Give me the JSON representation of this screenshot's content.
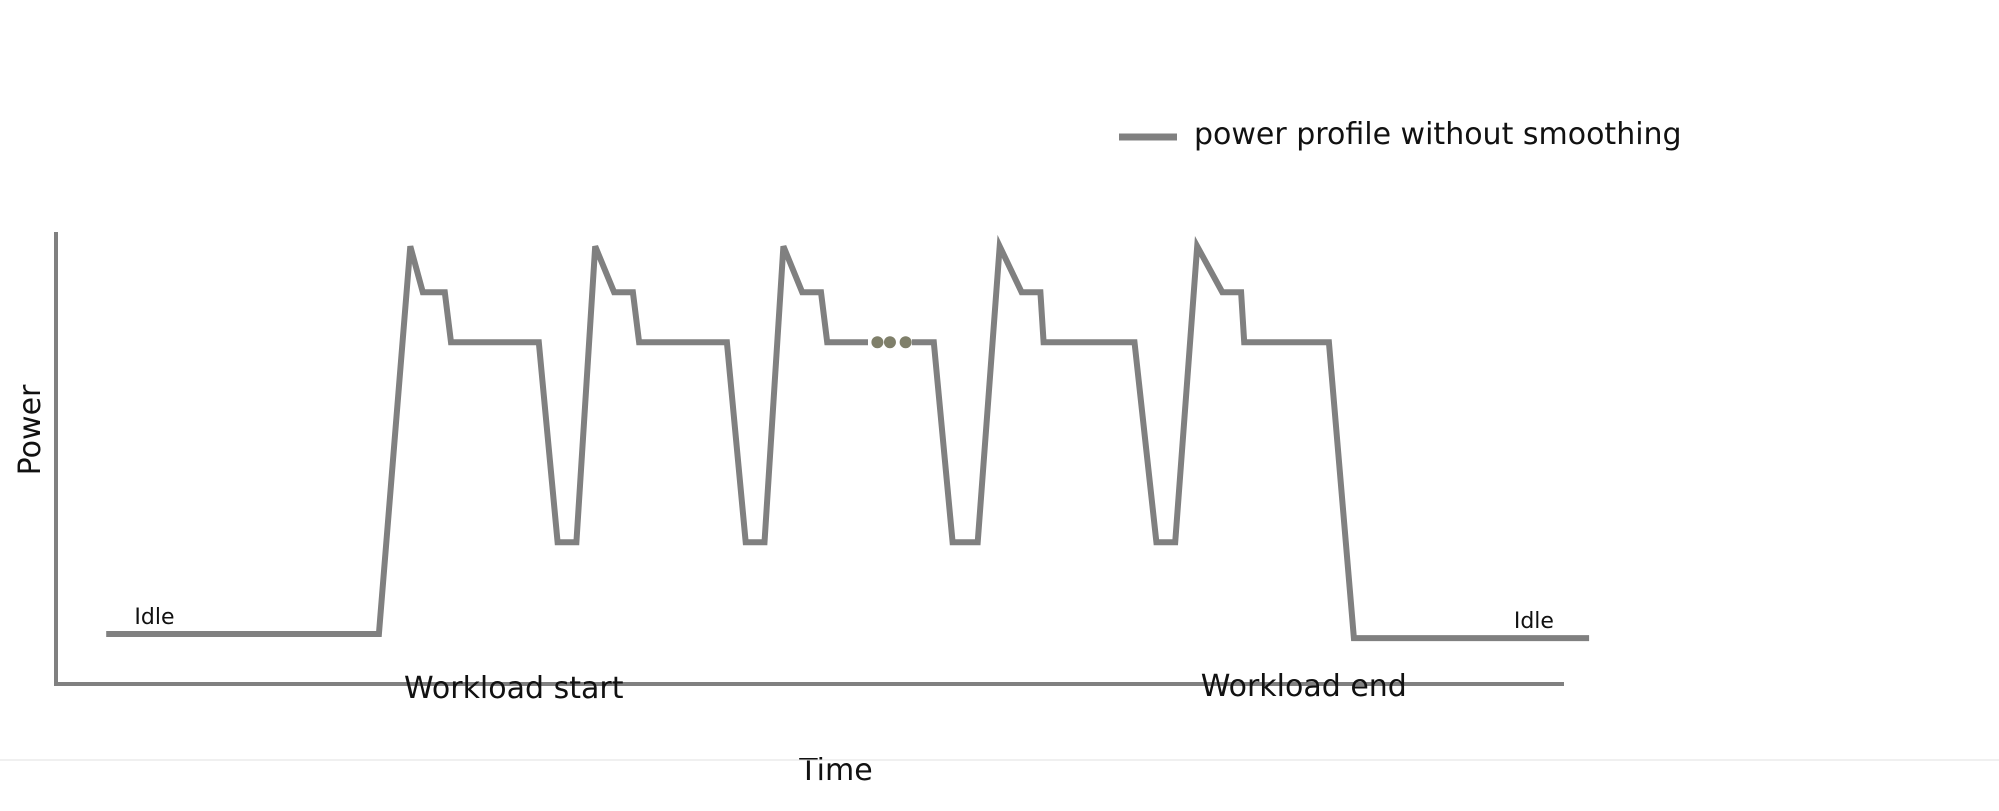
{
  "chart_data": {
    "type": "line",
    "title": "",
    "xlabel": "Time",
    "ylabel": "Power",
    "grid": false,
    "legend_position": "top-right",
    "ticks_shown": false,
    "colors": {
      "series": "#808080",
      "axis": "#808080",
      "ellipsis": "#7f7f6a"
    },
    "series": [
      {
        "name": "power profile without smoothing",
        "segments": [
          {
            "x": [
              0.0,
              17.4,
              19.4,
              20.2,
              21.6,
              22.0,
              27.6,
              28.8,
              30.0,
              31.2,
              32.4,
              33.6,
              34.0,
              39.6,
              40.8,
              42.0,
              43.2,
              44.4,
              45.6,
              46.0,
              48.6
            ],
            "y": [
              0.05,
              0.05,
              0.98,
              0.87,
              0.87,
              0.75,
              0.75,
              0.27,
              0.27,
              0.98,
              0.87,
              0.87,
              0.75,
              0.75,
              0.27,
              0.27,
              0.98,
              0.87,
              0.87,
              0.75,
              0.75
            ]
          },
          {
            "x": [
              51.4,
              52.8,
              54.0,
              55.6,
              57.0,
              58.4,
              59.6,
              59.8,
              65.6,
              67.0,
              68.2,
              69.6,
              71.2,
              72.4,
              72.6,
              78.0,
              79.6,
              94.6
            ],
            "y": [
              0.75,
              0.75,
              0.27,
              0.27,
              0.98,
              0.87,
              0.87,
              0.75,
              0.75,
              0.27,
              0.27,
              0.98,
              0.87,
              0.87,
              0.75,
              0.75,
              0.04,
              0.04
            ]
          }
        ]
      }
    ],
    "ellipsis_points": [
      {
        "x": 49.2,
        "y": 0.75
      },
      {
        "x": 50.0,
        "y": 0.75
      },
      {
        "x": 51.0,
        "y": 0.75
      }
    ],
    "annotations": [
      {
        "text": "Idle",
        "x": 1.8,
        "y": 0.05,
        "size": "small"
      },
      {
        "text": "Idle",
        "x": 89.8,
        "y": 0.04,
        "size": "small"
      },
      {
        "text": "Workload start",
        "x": 26.0,
        "y": -0.08,
        "size": "large"
      },
      {
        "text": "Workload end",
        "x": 76.4,
        "y": -0.075,
        "size": "large"
      }
    ],
    "xlim": [
      -3.2,
      93.0
    ],
    "ylim": [
      -0.07,
      1.0
    ]
  }
}
